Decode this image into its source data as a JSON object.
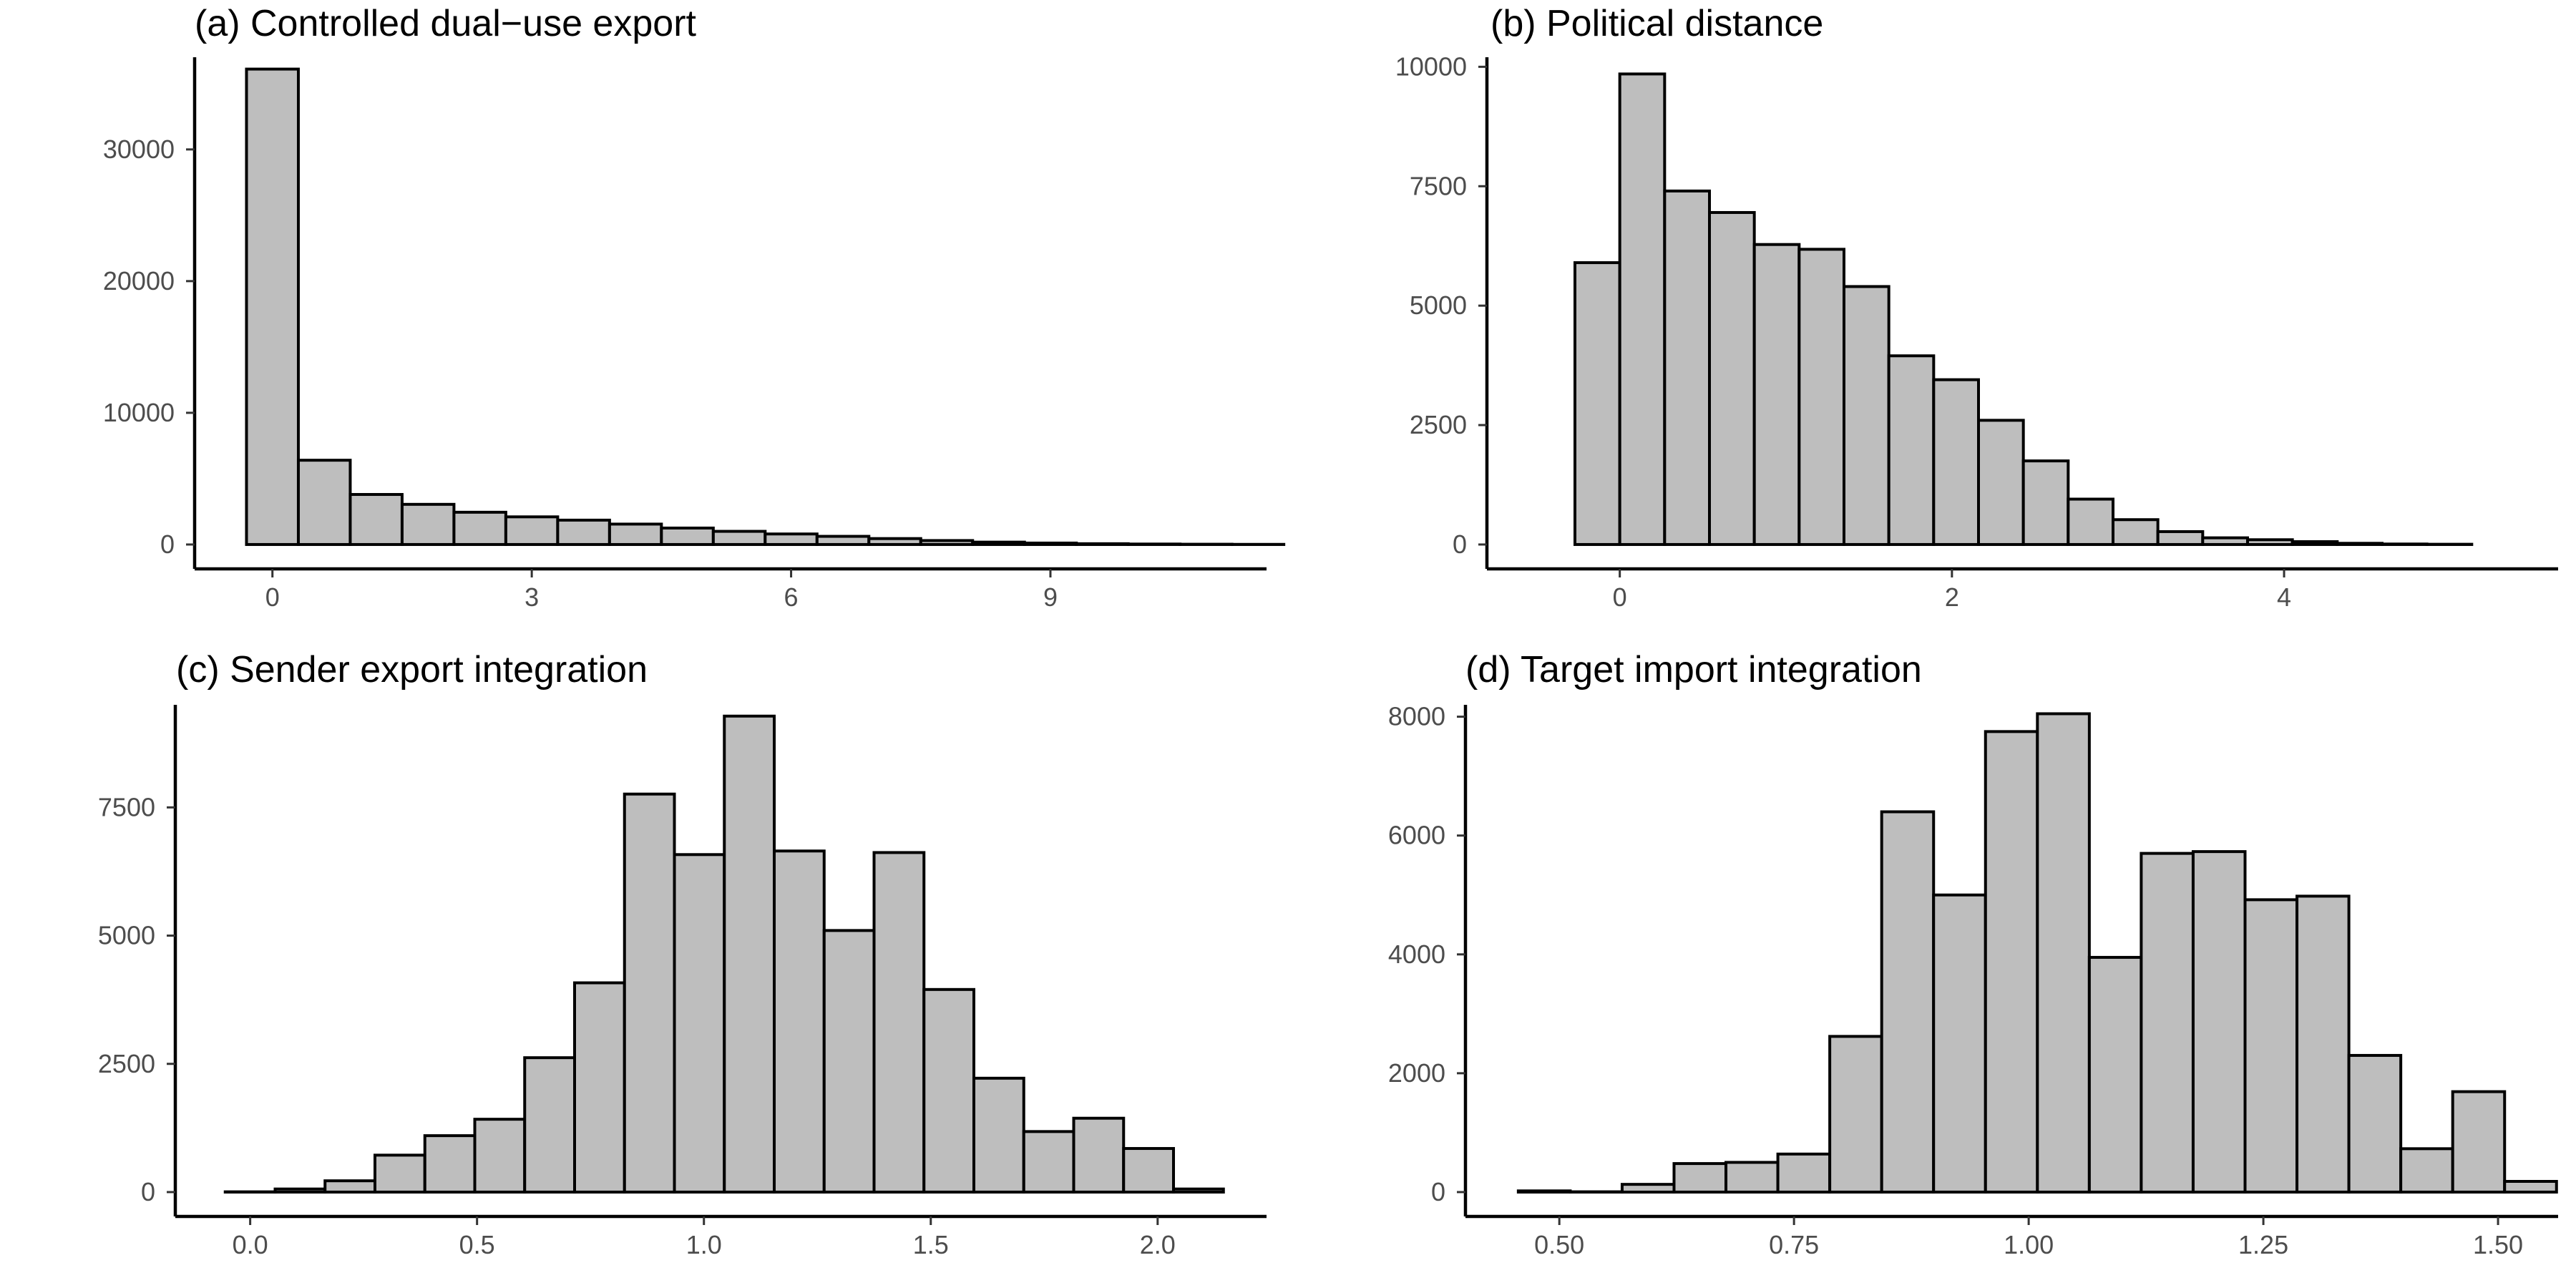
{
  "chart_data": [
    {
      "type": "bar",
      "title": "(a) Controlled dual−use export",
      "xlabel": "",
      "ylabel": "",
      "grid": false,
      "bin_width": 0.6,
      "bin_start": -0.3,
      "xlim": [
        -0.9,
        11.5
      ],
      "ylim": [
        0,
        37000
      ],
      "x_ticks": [
        0,
        3,
        6,
        9
      ],
      "x_tick_labels": [
        "0",
        "3",
        "6",
        "9"
      ],
      "y_ticks": [
        0,
        10000,
        20000,
        30000
      ],
      "y_tick_labels": [
        "0",
        "10000",
        "20000",
        "30000"
      ],
      "values": [
        36100,
        6400,
        3800,
        3050,
        2450,
        2100,
        1850,
        1550,
        1250,
        1000,
        800,
        620,
        450,
        300,
        180,
        110,
        60,
        35,
        20,
        10
      ]
    },
    {
      "type": "bar",
      "title": "(b) Political distance",
      "xlabel": "",
      "ylabel": "",
      "grid": false,
      "bin_width": 0.27,
      "bin_start": -0.27,
      "xlim": [
        -0.8,
        5.65
      ],
      "ylim": [
        0,
        10200
      ],
      "x_ticks": [
        0,
        2,
        4
      ],
      "x_tick_labels": [
        "0",
        "2",
        "4"
      ],
      "y_ticks": [
        0,
        2500,
        5000,
        7500,
        10000
      ],
      "y_tick_labels": [
        "0",
        "2500",
        "5000",
        "7500",
        "10000"
      ],
      "values": [
        5900,
        9850,
        7400,
        6950,
        6280,
        6180,
        5400,
        3950,
        3450,
        2600,
        1750,
        950,
        520,
        270,
        140,
        100,
        60,
        25,
        10,
        5
      ]
    },
    {
      "type": "bar",
      "title": "(c) Sender export integration",
      "xlabel": "",
      "ylabel": "",
      "grid": false,
      "bin_width": 0.11,
      "bin_start": -0.055,
      "xlim": [
        -0.165,
        2.24
      ],
      "ylim": [
        0,
        9500
      ],
      "x_ticks": [
        0,
        0.5,
        1,
        1.5,
        2
      ],
      "x_tick_labels": [
        "0.0",
        "0.5",
        "1.0",
        "1.5",
        "2.0"
      ],
      "y_ticks": [
        0,
        2500,
        5000,
        7500
      ],
      "y_tick_labels": [
        "0",
        "2500",
        "5000",
        "7500"
      ],
      "values": [
        5,
        60,
        220,
        720,
        1100,
        1420,
        2620,
        4080,
        7760,
        6580,
        9280,
        6650,
        5100,
        6620,
        3950,
        2220,
        1180,
        1440,
        850,
        60
      ]
    },
    {
      "type": "bar",
      "title": "(d) Target import integration",
      "xlabel": "",
      "ylabel": "",
      "grid": false,
      "bin_width": 0.0553,
      "bin_start": 0.4563,
      "xlim": [
        0.4,
        1.564
      ],
      "ylim": [
        0,
        8200
      ],
      "x_ticks": [
        0.5,
        0.75,
        1,
        1.25,
        1.5
      ],
      "x_tick_labels": [
        "0.50",
        "0.75",
        "1.00",
        "1.25",
        "1.50"
      ],
      "y_ticks": [
        0,
        2000,
        4000,
        6000,
        8000
      ],
      "y_tick_labels": [
        "0",
        "2000",
        "4000",
        "6000",
        "8000"
      ],
      "values": [
        20,
        5,
        130,
        480,
        500,
        640,
        2620,
        6400,
        5000,
        7750,
        8050,
        3950,
        5700,
        5730,
        4920,
        4980,
        2300,
        730,
        1690,
        180
      ]
    }
  ],
  "colors": {
    "bar_fill": "#bebebe",
    "bar_outline": "#000000",
    "axis": "#000000",
    "tick_text": "#4d4d4d"
  }
}
